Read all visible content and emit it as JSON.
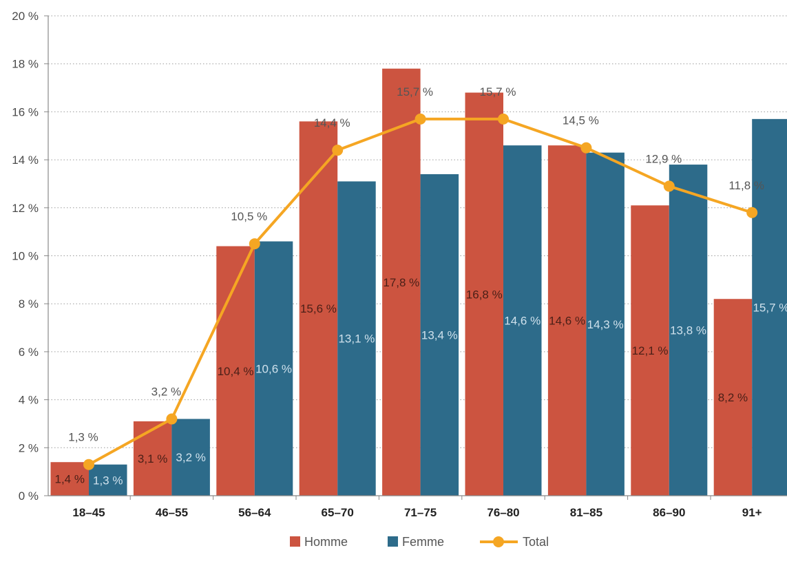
{
  "chart_data": {
    "type": "bar",
    "categories": [
      "18–45",
      "46–55",
      "56–64",
      "65–70",
      "71–75",
      "76–80",
      "81–85",
      "86–90",
      "91+"
    ],
    "series": [
      {
        "name": "Homme",
        "type": "bar",
        "color": "#cc5440",
        "values": [
          1.4,
          3.1,
          10.4,
          15.6,
          17.8,
          16.8,
          14.6,
          12.1,
          8.2
        ],
        "labels": [
          "1,4 %",
          "3,1 %",
          "10,4 %",
          "15,6 %",
          "17,8 %",
          "16,8 %",
          "14,6 %",
          "12,1 %",
          "8,2 %"
        ]
      },
      {
        "name": "Femme",
        "type": "bar",
        "color": "#2d6b8a",
        "values": [
          1.3,
          3.2,
          10.6,
          13.1,
          13.4,
          14.6,
          14.3,
          13.8,
          15.7
        ],
        "labels": [
          "1,3 %",
          "3,2 %",
          "10,6 %",
          "13,1 %",
          "13,4 %",
          "14,6 %",
          "14,3 %",
          "13,8 %",
          "15,7 %"
        ]
      },
      {
        "name": "Total",
        "type": "line",
        "color": "#f5a623",
        "values": [
          1.3,
          3.2,
          10.5,
          14.4,
          15.7,
          15.7,
          14.5,
          12.9,
          11.8
        ],
        "labels": [
          "1,3 %",
          "3,2 %",
          "10,5 %",
          "14,4 %",
          "15,7 %",
          "15,7 %",
          "14,5 %",
          "12,9 %",
          "11,8 %"
        ]
      }
    ],
    "y_ticks": [
      "0 %",
      "2 %",
      "4 %",
      "6 %",
      "8 %",
      "10 %",
      "12 %",
      "14 %",
      "16 %",
      "18 %",
      "20 %"
    ],
    "ylim": [
      0,
      20
    ],
    "grid": true,
    "legend_position": "bottom-center",
    "title": "",
    "xlabel": "",
    "ylabel": ""
  }
}
